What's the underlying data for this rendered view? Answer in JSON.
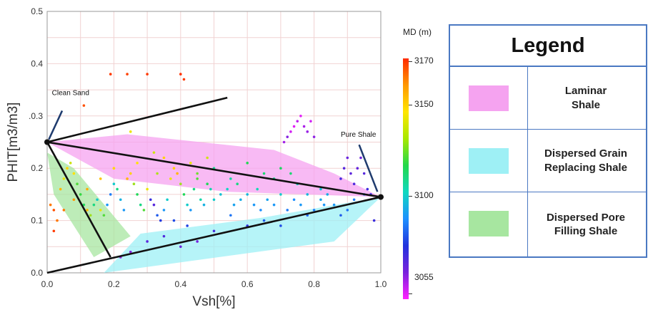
{
  "chart_data": {
    "type": "scatter",
    "title": "",
    "xlabel": "Vsh[%]",
    "ylabel": "PHIT[m3/m3]",
    "xlim": [
      0.0,
      1.0
    ],
    "ylim": [
      0.0,
      0.5
    ],
    "x_ticks": [
      "0.0",
      "0.2",
      "0.4",
      "0.6",
      "0.8",
      "1.0"
    ],
    "y_ticks": [
      "0.0",
      "0.1",
      "0.2",
      ".0.3",
      "0.4",
      "0.5"
    ],
    "grid": true,
    "color_scale": {
      "title": "MD (m)",
      "min": 3055,
      "max": 3170,
      "ticks": [
        "3170",
        "3150",
        "3100",
        "3055"
      ],
      "colors": [
        "#ff2a00",
        "#ff9800",
        "#ffe600",
        "#22d84a",
        "#10d8c0",
        "#1e90ff",
        "#2233dd",
        "#7a22dd",
        "#ff22ff"
      ]
    },
    "reference_lines": [
      {
        "name": "clean-to-shale",
        "points": [
          [
            0.0,
            0.25
          ],
          [
            1.0,
            0.145
          ]
        ]
      },
      {
        "name": "lower-bound",
        "points": [
          [
            0.0,
            0.0
          ],
          [
            1.0,
            0.145
          ]
        ]
      },
      {
        "name": "dispersed-line",
        "points": [
          [
            0.0,
            0.25
          ],
          [
            0.19,
            0.03
          ]
        ]
      },
      {
        "name": "upper-line",
        "points": [
          [
            0.0,
            0.25
          ],
          [
            0.54,
            0.335
          ]
        ]
      }
    ],
    "regions": [
      {
        "name": "Laminar Shale",
        "color": "#f5a3f0",
        "points": [
          [
            0.0,
            0.25
          ],
          [
            0.24,
            0.265
          ],
          [
            0.68,
            0.235
          ],
          [
            0.86,
            0.19
          ],
          [
            1.0,
            0.145
          ],
          [
            0.54,
            0.155
          ],
          [
            0.2,
            0.18
          ]
        ]
      },
      {
        "name": "Dispersed Grain Replacing Shale",
        "color": "#9ef0f5",
        "points": [
          [
            0.17,
            0.0
          ],
          [
            0.86,
            0.06
          ],
          [
            1.0,
            0.145
          ],
          [
            0.64,
            0.105
          ],
          [
            0.28,
            0.075
          ]
        ]
      },
      {
        "name": "Dispersed Pore Filling Shale",
        "color": "#a7e6a0",
        "points": [
          [
            0.0,
            0.23
          ],
          [
            0.08,
            0.2
          ],
          [
            0.25,
            0.07
          ],
          [
            0.14,
            0.03
          ],
          [
            0.02,
            0.15
          ]
        ]
      }
    ],
    "annotations": [
      {
        "text": "Clean Sand",
        "x": 0.01,
        "y": 0.34
      },
      {
        "text": "Pure Shale",
        "x": 0.88,
        "y": 0.26
      }
    ],
    "series": [
      {
        "points": [
          [
            0.01,
            0.13,
            3160
          ],
          [
            0.02,
            0.12,
            3165
          ],
          [
            0.03,
            0.1,
            3160
          ],
          [
            0.02,
            0.08,
            3168
          ],
          [
            0.04,
            0.16,
            3150
          ],
          [
            0.05,
            0.18,
            3140
          ],
          [
            0.06,
            0.2,
            3145
          ],
          [
            0.07,
            0.21,
            3138
          ],
          [
            0.08,
            0.19,
            3142
          ],
          [
            0.09,
            0.17,
            3130
          ],
          [
            0.1,
            0.15,
            3128
          ],
          [
            0.11,
            0.13,
            3125
          ],
          [
            0.12,
            0.12,
            3150
          ],
          [
            0.13,
            0.11,
            3135
          ],
          [
            0.14,
            0.13,
            3120
          ],
          [
            0.15,
            0.14,
            3110
          ],
          [
            0.16,
            0.12,
            3140
          ],
          [
            0.17,
            0.11,
            3130
          ],
          [
            0.18,
            0.13,
            3100
          ],
          [
            0.19,
            0.15,
            3095
          ],
          [
            0.2,
            0.17,
            3110
          ],
          [
            0.21,
            0.16,
            3120
          ],
          [
            0.22,
            0.14,
            3105
          ],
          [
            0.23,
            0.12,
            3100
          ],
          [
            0.24,
            0.18,
            3150
          ],
          [
            0.25,
            0.19,
            3145
          ],
          [
            0.26,
            0.17,
            3135
          ],
          [
            0.27,
            0.15,
            3125
          ],
          [
            0.28,
            0.13,
            3120
          ],
          [
            0.29,
            0.12,
            3130
          ],
          [
            0.3,
            0.16,
            3140
          ],
          [
            0.31,
            0.14,
            3080
          ],
          [
            0.32,
            0.13,
            3075
          ],
          [
            0.33,
            0.11,
            3090
          ],
          [
            0.34,
            0.1,
            3085
          ],
          [
            0.35,
            0.12,
            3100
          ],
          [
            0.36,
            0.14,
            3110
          ],
          [
            0.37,
            0.18,
            3140
          ],
          [
            0.38,
            0.2,
            3145
          ],
          [
            0.39,
            0.19,
            3150
          ],
          [
            0.4,
            0.17,
            3135
          ],
          [
            0.41,
            0.15,
            3125
          ],
          [
            0.42,
            0.13,
            3110
          ],
          [
            0.43,
            0.12,
            3100
          ],
          [
            0.44,
            0.16,
            3120
          ],
          [
            0.45,
            0.18,
            3130
          ],
          [
            0.46,
            0.14,
            3115
          ],
          [
            0.47,
            0.13,
            3105
          ],
          [
            0.48,
            0.17,
            3125
          ],
          [
            0.49,
            0.16,
            3115
          ],
          [
            0.5,
            0.14,
            3110
          ],
          [
            0.52,
            0.15,
            3108
          ],
          [
            0.54,
            0.16,
            3112
          ],
          [
            0.56,
            0.13,
            3102
          ],
          [
            0.58,
            0.14,
            3104
          ],
          [
            0.6,
            0.15,
            3106
          ],
          [
            0.62,
            0.13,
            3100
          ],
          [
            0.64,
            0.12,
            3098
          ],
          [
            0.66,
            0.14,
            3102
          ],
          [
            0.68,
            0.13,
            3100
          ],
          [
            0.7,
            0.15,
            3110
          ],
          [
            0.72,
            0.12,
            3095
          ],
          [
            0.74,
            0.14,
            3098
          ],
          [
            0.76,
            0.13,
            3100
          ],
          [
            0.78,
            0.11,
            3092
          ],
          [
            0.8,
            0.12,
            3096
          ],
          [
            0.82,
            0.14,
            3102
          ],
          [
            0.84,
            0.15,
            3104
          ],
          [
            0.86,
            0.13,
            3100
          ],
          [
            0.88,
            0.11,
            3090
          ],
          [
            0.9,
            0.12,
            3094
          ],
          [
            0.92,
            0.14,
            3096
          ],
          [
            0.95,
            0.15,
            3098
          ],
          [
            0.98,
            0.1,
            3080
          ],
          [
            0.73,
            0.27,
            3060
          ],
          [
            0.74,
            0.28,
            3058
          ],
          [
            0.75,
            0.29,
            3062
          ],
          [
            0.76,
            0.3,
            3058
          ],
          [
            0.77,
            0.28,
            3064
          ],
          [
            0.78,
            0.27,
            3066
          ],
          [
            0.79,
            0.29,
            3060
          ],
          [
            0.72,
            0.26,
            3068
          ],
          [
            0.71,
            0.25,
            3065
          ],
          [
            0.8,
            0.26,
            3067
          ],
          [
            0.88,
            0.18,
            3078
          ],
          [
            0.89,
            0.2,
            3075
          ],
          [
            0.9,
            0.22,
            3072
          ],
          [
            0.91,
            0.19,
            3074
          ],
          [
            0.92,
            0.17,
            3076
          ],
          [
            0.93,
            0.2,
            3073
          ],
          [
            0.94,
            0.22,
            3071
          ],
          [
            0.95,
            0.19,
            3075
          ],
          [
            0.96,
            0.16,
            3079
          ],
          [
            0.97,
            0.15,
            3080
          ],
          [
            0.11,
            0.32,
            3165
          ],
          [
            0.19,
            0.38,
            3168
          ],
          [
            0.24,
            0.38,
            3167
          ],
          [
            0.3,
            0.38,
            3168
          ],
          [
            0.4,
            0.38,
            3169
          ],
          [
            0.41,
            0.37,
            3168
          ],
          [
            0.25,
            0.27,
            3140
          ],
          [
            0.32,
            0.23,
            3138
          ],
          [
            0.35,
            0.22,
            3145
          ],
          [
            0.45,
            0.19,
            3132
          ],
          [
            0.5,
            0.2,
            3118
          ],
          [
            0.55,
            0.18,
            3116
          ],
          [
            0.6,
            0.21,
            3126
          ],
          [
            0.65,
            0.19,
            3122
          ],
          [
            0.7,
            0.2,
            3124
          ],
          [
            0.75,
            0.17,
            3112
          ],
          [
            0.82,
            0.16,
            3108
          ],
          [
            0.6,
            0.09,
            3082
          ],
          [
            0.5,
            0.08,
            3078
          ],
          [
            0.45,
            0.06,
            3070
          ],
          [
            0.4,
            0.05,
            3072
          ],
          [
            0.35,
            0.07,
            3076
          ],
          [
            0.3,
            0.06,
            3074
          ],
          [
            0.25,
            0.04,
            3068
          ],
          [
            0.22,
            0.03,
            3066
          ],
          [
            0.38,
            0.1,
            3088
          ],
          [
            0.42,
            0.09,
            3086
          ],
          [
            0.55,
            0.11,
            3094
          ],
          [
            0.65,
            0.1,
            3090
          ],
          [
            0.7,
            0.09,
            3088
          ],
          [
            0.05,
            0.12,
            3160
          ],
          [
            0.08,
            0.14,
            3155
          ],
          [
            0.12,
            0.16,
            3152
          ],
          [
            0.16,
            0.18,
            3148
          ],
          [
            0.2,
            0.2,
            3144
          ],
          [
            0.27,
            0.21,
            3142
          ],
          [
            0.33,
            0.19,
            3136
          ],
          [
            0.43,
            0.21,
            3140
          ],
          [
            0.48,
            0.22,
            3138
          ],
          [
            0.57,
            0.17,
            3120
          ],
          [
            0.63,
            0.16,
            3114
          ],
          [
            0.68,
            0.18,
            3118
          ],
          [
            0.73,
            0.19,
            3122
          ],
          [
            0.78,
            0.15,
            3106
          ],
          [
            0.83,
            0.13,
            3100
          ]
        ]
      }
    ]
  },
  "legend": {
    "title": "Legend",
    "items": [
      {
        "label": "Laminar\nShale",
        "color": "#f5a3f0"
      },
      {
        "label": "Dispersed Grain\nReplacing Shale",
        "color": "#9ef0f5"
      },
      {
        "label": "Dispersed Pore\nFilling Shale",
        "color": "#a7e6a0"
      }
    ]
  }
}
